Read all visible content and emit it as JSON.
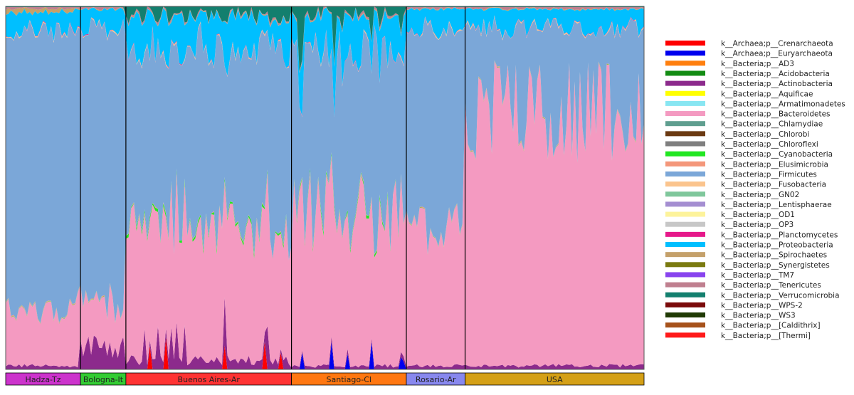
{
  "chart_data": {
    "type": "area",
    "stacked": true,
    "normalized": true,
    "ylim": [
      0,
      1
    ],
    "grid": false,
    "legend_position": "right",
    "groups": [
      {
        "label": "Hadza-Tz",
        "color": "#cc33cc",
        "start": 0,
        "end": 28
      },
      {
        "label": "Bologna-It",
        "color": "#33cc33",
        "start": 28,
        "end": 45
      },
      {
        "label": "Buenos Aires-Ar",
        "color": "#ff3333",
        "start": 45,
        "end": 107
      },
      {
        "label": "Santiago-Cl",
        "color": "#ff7711",
        "start": 107,
        "end": 150
      },
      {
        "label": "Rosario-Ar",
        "color": "#8888ee",
        "start": 150,
        "end": 172
      },
      {
        "label": "USA",
        "color": "#d4a017",
        "start": 172,
        "end": 240
      }
    ],
    "n_samples": 240,
    "group_segments": [
      {
        "phyla": [
          "k__Bacteria;p__Bacteroidetes"
        ],
        "start": 0,
        "end": 28,
        "mean": 0.16,
        "amp": 0.05
      },
      {
        "phyla": [
          "k__Bacteria;p__Bacteroidetes"
        ],
        "start": 28,
        "end": 45,
        "mean": 0.12,
        "amp": 0.06
      },
      {
        "phyla": [
          "k__Bacteria;p__Bacteroidetes"
        ],
        "start": 45,
        "end": 107,
        "mean": 0.36,
        "amp": 0.08
      },
      {
        "phyla": [
          "k__Bacteria;p__Bacteroidetes"
        ],
        "start": 107,
        "end": 150,
        "mean": 0.42,
        "amp": 0.12
      },
      {
        "phyla": [
          "k__Bacteria;p__Bacteroidetes"
        ],
        "start": 150,
        "end": 172,
        "mean": 0.38,
        "amp": 0.08
      },
      {
        "phyla": [
          "k__Bacteria;p__Bacteroidetes"
        ],
        "start": 172,
        "end": 240,
        "mean": 0.7,
        "amp": 0.14
      }
    ],
    "series": [
      {
        "name": "k__Archaea;p__Crenarchaeota",
        "color": "#ff0000"
      },
      {
        "name": "k__Archaea;p__Euryarchaeota",
        "color": "#0000ee"
      },
      {
        "name": "k__Bacteria;p__AD3",
        "color": "#ff7f0e"
      },
      {
        "name": "k__Bacteria;p__Acidobacteria",
        "color": "#138c13"
      },
      {
        "name": "k__Bacteria;p__Actinobacteria",
        "color": "#8c2a8c"
      },
      {
        "name": "k__Bacteria;p__Aquificae",
        "color": "#ffff00"
      },
      {
        "name": "k__Bacteria;p__Armatimonadetes",
        "color": "#88e6f2"
      },
      {
        "name": "k__Bacteria;p__Bacteroidetes",
        "color": "#f49ac1"
      },
      {
        "name": "k__Bacteria;p__Chlamydiae",
        "color": "#5f9e8f"
      },
      {
        "name": "k__Bacteria;p__Chlorobi",
        "color": "#6b3a12"
      },
      {
        "name": "k__Bacteria;p__Chloroflexi",
        "color": "#7f7f7f"
      },
      {
        "name": "k__Bacteria;p__Cyanobacteria",
        "color": "#22e622"
      },
      {
        "name": "k__Bacteria;p__Elusimicrobia",
        "color": "#f4977a"
      },
      {
        "name": "k__Bacteria;p__Firmicutes",
        "color": "#7ba7d8"
      },
      {
        "name": "k__Bacteria;p__Fusobacteria",
        "color": "#fbc48d"
      },
      {
        "name": "k__Bacteria;p__GN02",
        "color": "#7fc79b"
      },
      {
        "name": "k__Bacteria;p__Lentisphaerae",
        "color": "#a48ed1"
      },
      {
        "name": "k__Bacteria;p__OD1",
        "color": "#fdf39b"
      },
      {
        "name": "k__Bacteria;p__OP3",
        "color": "#c7c7c7"
      },
      {
        "name": "k__Bacteria;p__Planctomycetes",
        "color": "#e6198a"
      },
      {
        "name": "k__Bacteria;p__Proteobacteria",
        "color": "#00bfff"
      },
      {
        "name": "k__Bacteria;p__Spirochaetes",
        "color": "#c4a06a"
      },
      {
        "name": "k__Bacteria;p__Synergistetes",
        "color": "#7a7a10"
      },
      {
        "name": "k__Bacteria;p__TM7",
        "color": "#8844ee"
      },
      {
        "name": "k__Bacteria;p__Tenericutes",
        "color": "#bf7f8f"
      },
      {
        "name": "k__Bacteria;p__Verrucomicrobia",
        "color": "#137f6e"
      },
      {
        "name": "k__Bacteria;p__WPS-2",
        "color": "#7a0a0a"
      },
      {
        "name": "k__Bacteria;p__WS3",
        "color": "#203a05"
      },
      {
        "name": "k__Bacteria;p__[Caldithrix]",
        "color": "#a6521b"
      },
      {
        "name": "k__Bacteria;p__[Thermi]",
        "color": "#ff1a1a"
      }
    ]
  }
}
